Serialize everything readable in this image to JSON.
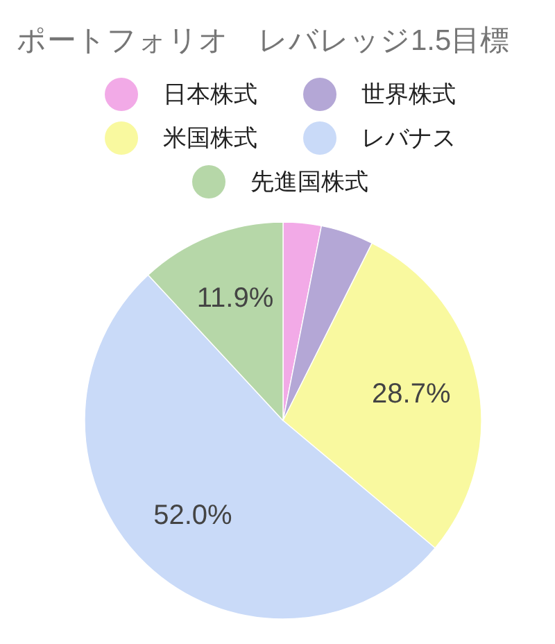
{
  "chart_data": {
    "type": "pie",
    "title": "ポートフォリオ　レバレッジ1.5目標",
    "categories": [
      "日本株式",
      "世界株式",
      "米国株式",
      "レバナス",
      "先進国株式"
    ],
    "values": [
      3.1,
      4.3,
      28.7,
      52.0,
      11.9
    ],
    "colors": [
      "#f2aae7",
      "#b4a7d6",
      "#f9f99f",
      "#c9daf8",
      "#b6d7a8"
    ],
    "value_labels": [
      null,
      null,
      "28.7%",
      "52.0%",
      "11.9%"
    ],
    "legend": "top"
  }
}
